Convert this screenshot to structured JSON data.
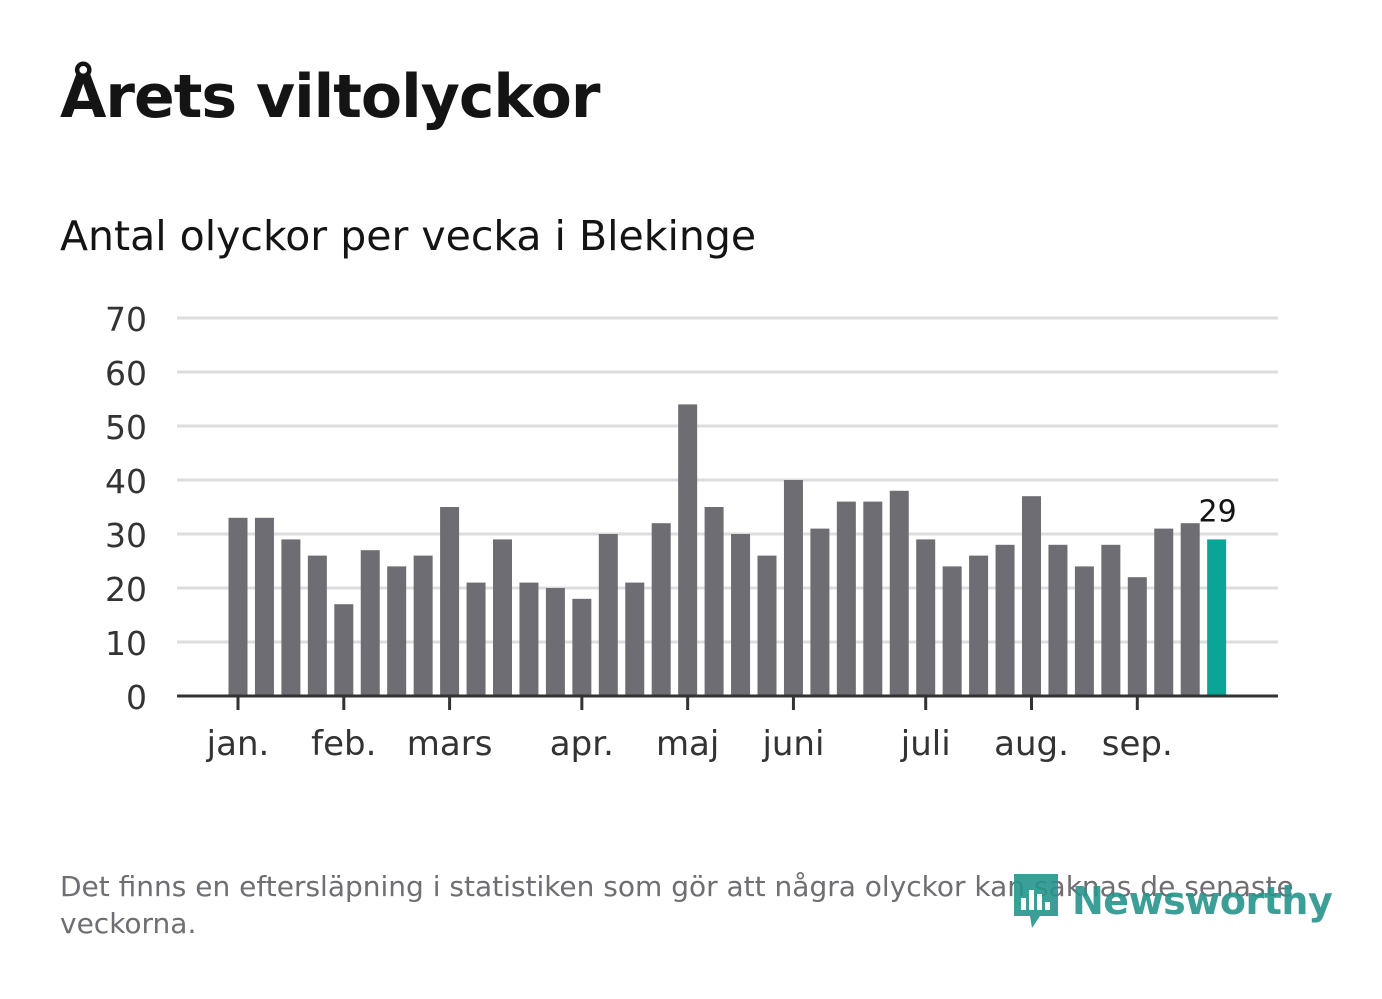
{
  "title": "Årets viltolyckor",
  "subtitle": "Antal olyckor per vecka i Blekinge",
  "footnote": "Det finns en eftersläpning i statistiken som gör att några olyckor kan saknas de senaste veckorna.",
  "logo": {
    "text": "Newsworthy",
    "icon": "newsworthy-logo-icon"
  },
  "colors": {
    "bar": "#6e6d73",
    "highlight": "#0aa596",
    "grid": "#dddddd",
    "axis": "#333333",
    "text": "#141414",
    "muted": "#6e6e73",
    "brand": "#26958c"
  },
  "chart_data": {
    "type": "bar",
    "title": "Antal olyckor per vecka i Blekinge",
    "xlabel": "",
    "ylabel": "",
    "ylim": [
      0,
      70
    ],
    "yticks": [
      0,
      10,
      20,
      30,
      40,
      50,
      60,
      70
    ],
    "grid": true,
    "values": [
      33,
      33,
      29,
      26,
      17,
      27,
      24,
      26,
      35,
      21,
      29,
      21,
      20,
      18,
      30,
      21,
      32,
      54,
      35,
      30,
      26,
      40,
      31,
      36,
      36,
      38,
      29,
      24,
      26,
      28,
      37,
      28,
      24,
      28,
      22,
      31,
      32,
      29
    ],
    "highlight_last": true,
    "last_value_label": "29",
    "month_labels": [
      {
        "label": "jan.",
        "week": 1
      },
      {
        "label": "feb.",
        "week": 5
      },
      {
        "label": "mars",
        "week": 9
      },
      {
        "label": "apr.",
        "week": 14
      },
      {
        "label": "maj",
        "week": 18
      },
      {
        "label": "juni",
        "week": 22
      },
      {
        "label": "juli",
        "week": 27
      },
      {
        "label": "aug.",
        "week": 31
      },
      {
        "label": "sep.",
        "week": 35
      }
    ]
  }
}
